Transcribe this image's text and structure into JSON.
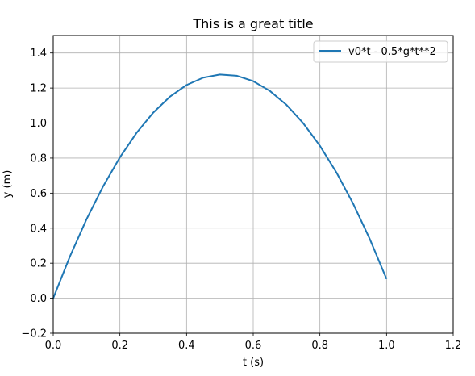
{
  "chart_data": {
    "type": "line",
    "title": "This is a great title",
    "xlabel": "t (s)",
    "ylabel": "y (m)",
    "xlim": [
      0.0,
      1.2
    ],
    "ylim": [
      -0.2,
      1.5
    ],
    "xticks": [
      "0.0",
      "0.2",
      "0.4",
      "0.6",
      "0.8",
      "1.0",
      "1.2"
    ],
    "yticks": [
      "−0.2",
      "0.0",
      "0.2",
      "0.4",
      "0.6",
      "0.8",
      "1.0",
      "1.2",
      "1.4"
    ],
    "grid": true,
    "legend_position": "top-right",
    "series": [
      {
        "name": "v0*t - 0.5*g*t**2",
        "color": "#1f77b4",
        "x": [
          0.0,
          0.05,
          0.1,
          0.15,
          0.2,
          0.25,
          0.3,
          0.35,
          0.4,
          0.45,
          0.5,
          0.55,
          0.6,
          0.65,
          0.7,
          0.75,
          0.8,
          0.85,
          0.9,
          0.95,
          1.0
        ],
        "y": [
          0.0,
          0.2377,
          0.451,
          0.6398,
          0.8042,
          0.9441,
          1.0596,
          1.1506,
          1.2172,
          1.2593,
          1.277,
          1.2703,
          1.2392,
          1.1836,
          1.1036,
          0.9991,
          0.8702,
          0.7168,
          0.539,
          0.3368,
          0.11
        ]
      }
    ]
  }
}
